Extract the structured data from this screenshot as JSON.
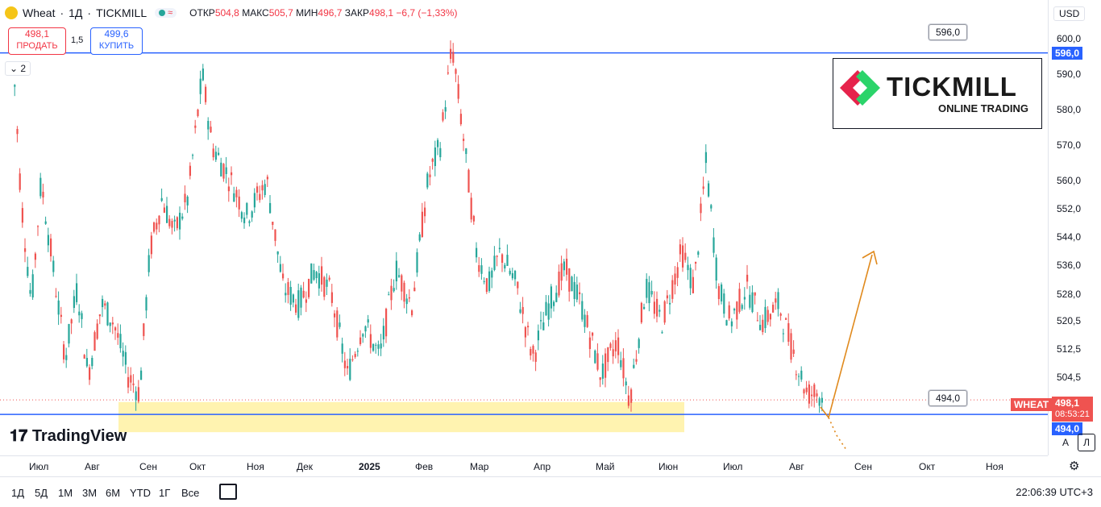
{
  "symbol": {
    "name": "Wheat",
    "timeframe": "1Д",
    "exchange": "TICKMILL"
  },
  "ohlc": {
    "open_label": "ОТКР",
    "open": "504,8",
    "high_label": "МАКС",
    "high": "505,7",
    "low_label": "МИН",
    "low": "496,7",
    "close_label": "ЗАКР",
    "close": "498,1",
    "change": "−6,7 (−1,33%)"
  },
  "trade": {
    "sell_price": "498,1",
    "sell_label": "ПРОДАТЬ",
    "spread": "1,5",
    "buy_price": "499,6",
    "buy_label": "КУПИТЬ"
  },
  "indicator_toggle": "2",
  "currency": "USD",
  "price_axis": [
    "600,0",
    "590,0",
    "580,0",
    "570,0",
    "560,0",
    "552,0",
    "544,0",
    "536,0",
    "528,0",
    "520,5",
    "512,5",
    "504,5"
  ],
  "levels": {
    "resistance": "596,0",
    "support": "494,0"
  },
  "current": {
    "symbol": "WHEAT",
    "price": "498,1",
    "countdown": "08:53:21"
  },
  "time_axis": [
    "Июл",
    "Авг",
    "Сен",
    "Окт",
    "Ноя",
    "Дек",
    "2025",
    "Фев",
    "Мар",
    "Апр",
    "Май",
    "Июн",
    "Июл",
    "Авг",
    "Сен",
    "Окт",
    "Ноя"
  ],
  "timeframes": [
    "1Д",
    "5Д",
    "1М",
    "3М",
    "6М",
    "YTD",
    "1Г",
    "Все"
  ],
  "clock": "22:06:39 UTC+3",
  "logo": {
    "brand": "TICKMILL",
    "tagline": "ONLINE TRADING"
  },
  "watermark": "TradingView",
  "colors": {
    "up": "#26a69a",
    "down": "#ef5350",
    "level_line": "#2962ff",
    "support_zone": "#fff3b0",
    "arrow": "#e08a1e",
    "sell": "#f23645",
    "buy": "#2962ff"
  },
  "axis_buttons": {
    "auto": "A",
    "log": "Л"
  }
}
